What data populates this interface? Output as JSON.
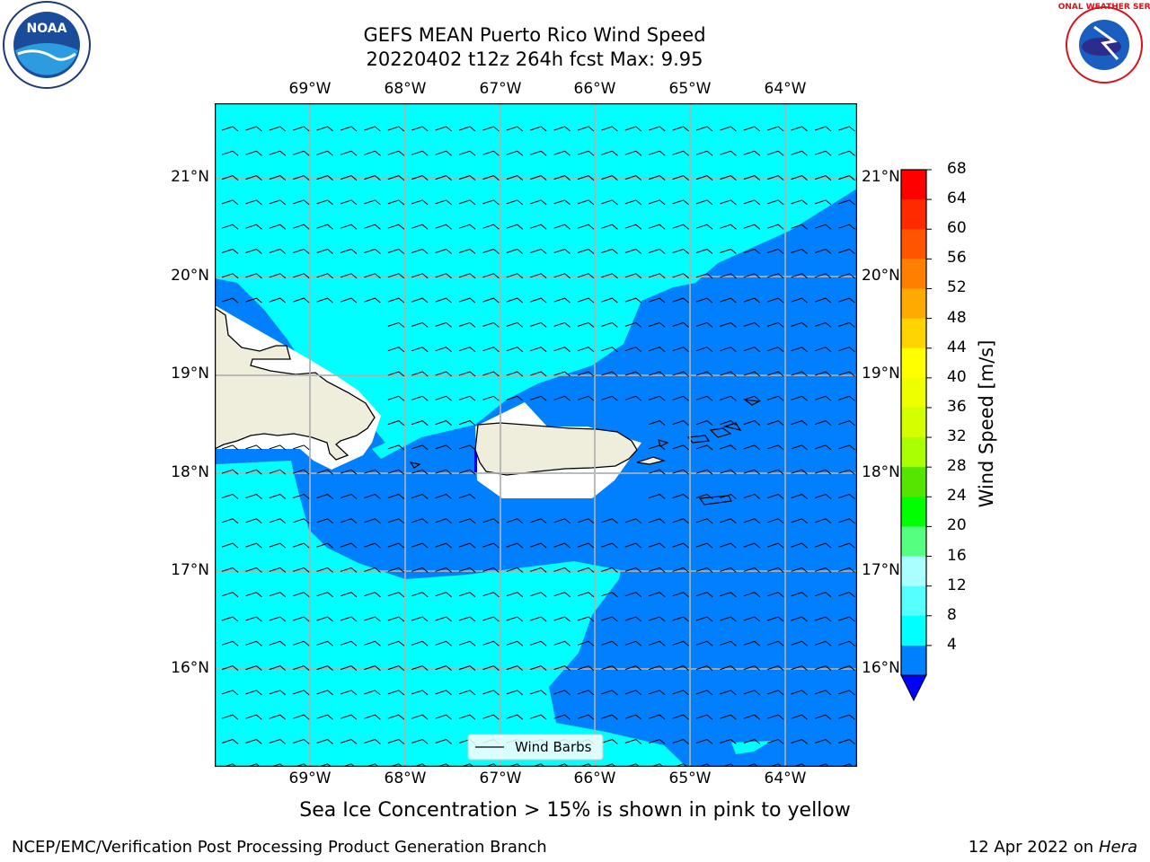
{
  "title": {
    "line1": "GEFS MEAN Puerto Rico Wind Speed",
    "line2": "20220402 t12z 264h fcst   Max: 9.95"
  },
  "logos": {
    "left": {
      "name": "noaa-logo",
      "text": "NOAA"
    },
    "right": {
      "name": "nws-logo",
      "text": "NATIONAL WEATHER SERVICE"
    }
  },
  "map": {
    "lon_ticks": [
      "69°W",
      "68°W",
      "67°W",
      "66°W",
      "65°W",
      "64°W"
    ],
    "lat_ticks": [
      "21°N",
      "20°N",
      "19°N",
      "18°N",
      "17°N",
      "16°N"
    ],
    "legend": {
      "label": "Wind Barbs"
    }
  },
  "colorbar": {
    "label": "Wind Speed [m/s]",
    "ticks": [
      "68",
      "64",
      "60",
      "56",
      "52",
      "48",
      "44",
      "40",
      "36",
      "32",
      "28",
      "24",
      "20",
      "16",
      "12",
      "8",
      "4"
    ],
    "colors": [
      "#ff0000",
      "#ff2a00",
      "#ff5500",
      "#ff8000",
      "#ffaa00",
      "#ffd400",
      "#ffff00",
      "#eeff00",
      "#d4ff00",
      "#aaff00",
      "#55e600",
      "#00ff00",
      "#55ff80",
      "#aaffff",
      "#55ffff",
      "#00ffff",
      "#0080ff"
    ],
    "underflow_color": "#0000ff"
  },
  "colors": {
    "ocean_light": "#00ffff",
    "ocean_dark": "#0080ff",
    "land": "#efeedc"
  },
  "bottom_note": "Sea Ice Concentration > 15% is shown in pink to yellow",
  "footer": {
    "left": "NCEP/EMC/Verification Post Processing Product Generation Branch",
    "right_prefix": "12 Apr 2022 on ",
    "right_host": "Hera"
  }
}
